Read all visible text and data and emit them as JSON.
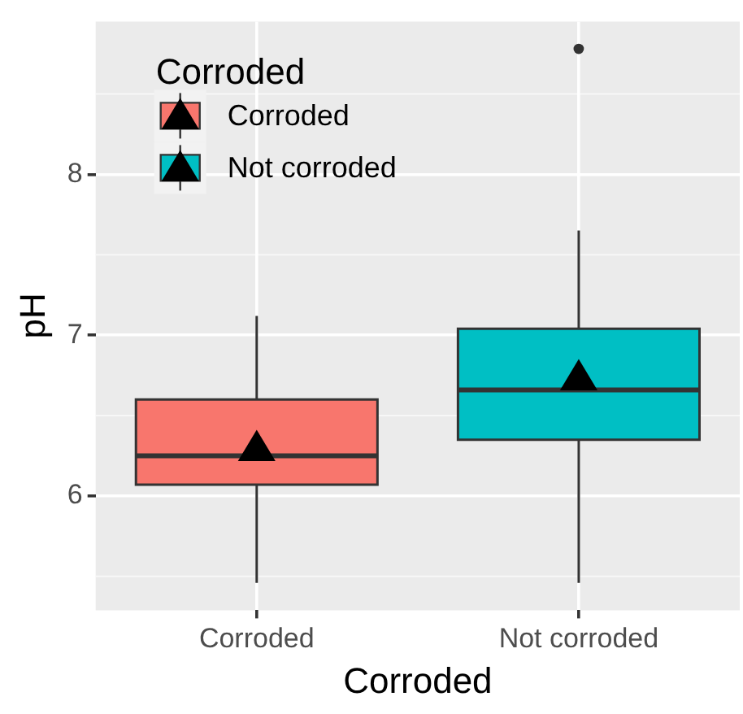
{
  "chart_data": {
    "type": "box",
    "xlabel": "Corroded",
    "ylabel": "pH",
    "legend_title": "Corroded",
    "categories": [
      "Corroded",
      "Not corroded"
    ],
    "series": [
      {
        "name": "Corroded",
        "color": "#f8766d",
        "boxes": [
          {
            "low": 5.46,
            "q1": 6.07,
            "median": 6.25,
            "q3": 6.6,
            "high": 7.12,
            "mean": 6.3
          },
          null
        ]
      },
      {
        "name": "Not corroded",
        "color": "#00bfc4",
        "boxes": [
          null,
          {
            "low": 5.46,
            "q1": 6.35,
            "median": 6.66,
            "q3": 7.04,
            "high": 7.65,
            "mean": 6.74,
            "outliers": [
              8.78
            ]
          }
        ]
      }
    ],
    "ylim": [
      5.29,
      8.95
    ],
    "yticks": [
      6,
      7,
      8
    ],
    "grid": true,
    "legend": "top left",
    "marker": "triangle"
  }
}
